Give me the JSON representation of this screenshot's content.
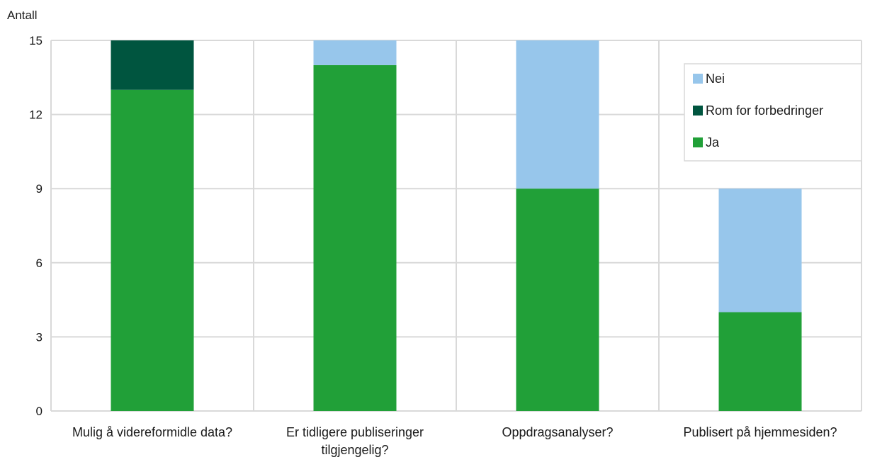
{
  "chart_data": {
    "type": "bar",
    "stacked": true,
    "ylabel": "Antall",
    "xlabel": "",
    "ylim": [
      0,
      15
    ],
    "yticks": [
      0,
      3,
      6,
      9,
      12,
      15
    ],
    "grid": true,
    "legend_position": "top-right",
    "categories": [
      [
        "Mulig å videreformidle data?"
      ],
      [
        "Er tidligere publiseringer",
        "tilgjengelig?"
      ],
      [
        "Oppdragsanalyser?"
      ],
      [
        "Publisert på hjemmesiden?"
      ]
    ],
    "series": [
      {
        "name": "Ja",
        "color": "#21a038",
        "values": [
          13,
          14,
          9,
          4
        ]
      },
      {
        "name": "Rom for forbedringer",
        "color": "#00553f",
        "values": [
          2,
          0,
          0,
          0
        ]
      },
      {
        "name": "Nei",
        "color": "#97c6eb",
        "values": [
          0,
          1,
          6,
          5
        ]
      }
    ],
    "legend_order": [
      "Nei",
      "Rom for forbedringer",
      "Ja"
    ]
  }
}
